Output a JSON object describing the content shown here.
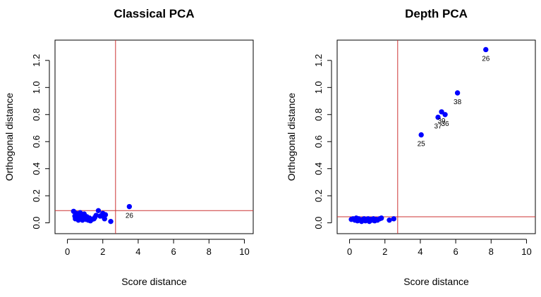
{
  "chart_data": [
    {
      "type": "scatter",
      "title": "Classical PCA",
      "xlabel": "Score distance",
      "ylabel": "Orthogonal distance",
      "xlim": [
        -0.7,
        10.5
      ],
      "ylim": [
        -0.08,
        1.35
      ],
      "xticks": [
        "0",
        "2",
        "4",
        "6",
        "8",
        "10"
      ],
      "yticks": [
        "0.0",
        "0.2",
        "0.4",
        "0.6",
        "0.8",
        "1.0",
        "1.2"
      ],
      "cutoff_x": 2.72,
      "cutoff_y": 0.09,
      "point_color": "#0000ff",
      "cutoff_color": "#cc3333",
      "points": [
        {
          "x": 0.35,
          "y": 0.085
        },
        {
          "x": 0.42,
          "y": 0.05
        },
        {
          "x": 0.45,
          "y": 0.03
        },
        {
          "x": 0.5,
          "y": 0.07
        },
        {
          "x": 0.55,
          "y": 0.04
        },
        {
          "x": 0.6,
          "y": 0.06
        },
        {
          "x": 0.62,
          "y": 0.02
        },
        {
          "x": 0.68,
          "y": 0.045
        },
        {
          "x": 0.72,
          "y": 0.075
        },
        {
          "x": 0.78,
          "y": 0.035
        },
        {
          "x": 0.82,
          "y": 0.055
        },
        {
          "x": 0.85,
          "y": 0.02
        },
        {
          "x": 0.9,
          "y": 0.05
        },
        {
          "x": 0.95,
          "y": 0.065
        },
        {
          "x": 1.0,
          "y": 0.035
        },
        {
          "x": 1.05,
          "y": 0.025
        },
        {
          "x": 1.1,
          "y": 0.045
        },
        {
          "x": 1.18,
          "y": 0.02
        },
        {
          "x": 1.25,
          "y": 0.035
        },
        {
          "x": 1.3,
          "y": 0.015
        },
        {
          "x": 1.4,
          "y": 0.025
        },
        {
          "x": 1.5,
          "y": 0.03
        },
        {
          "x": 1.55,
          "y": 0.04
        },
        {
          "x": 1.62,
          "y": 0.055
        },
        {
          "x": 1.75,
          "y": 0.09
        },
        {
          "x": 1.85,
          "y": 0.05
        },
        {
          "x": 2.0,
          "y": 0.07
        },
        {
          "x": 2.05,
          "y": 0.045
        },
        {
          "x": 2.1,
          "y": 0.03
        },
        {
          "x": 2.15,
          "y": 0.06
        },
        {
          "x": 2.45,
          "y": 0.01
        },
        {
          "x": 3.5,
          "y": 0.12,
          "label": "26"
        }
      ]
    },
    {
      "type": "scatter",
      "title": "Depth PCA",
      "xlabel": "Score distance",
      "ylabel": "Orthogonal distance",
      "xlim": [
        -0.7,
        10.5
      ],
      "ylim": [
        -0.08,
        1.35
      ],
      "xticks": [
        "0",
        "2",
        "4",
        "6",
        "8",
        "10"
      ],
      "yticks": [
        "0.0",
        "0.2",
        "0.4",
        "0.6",
        "0.8",
        "1.0",
        "1.2"
      ],
      "cutoff_x": 2.72,
      "cutoff_y": 0.045,
      "point_color": "#0000ff",
      "cutoff_color": "#cc3333",
      "points": [
        {
          "x": 0.1,
          "y": 0.025
        },
        {
          "x": 0.2,
          "y": 0.03
        },
        {
          "x": 0.3,
          "y": 0.02
        },
        {
          "x": 0.38,
          "y": 0.035
        },
        {
          "x": 0.45,
          "y": 0.015
        },
        {
          "x": 0.52,
          "y": 0.03
        },
        {
          "x": 0.6,
          "y": 0.02
        },
        {
          "x": 0.68,
          "y": 0.01
        },
        {
          "x": 0.75,
          "y": 0.025
        },
        {
          "x": 0.82,
          "y": 0.03
        },
        {
          "x": 0.9,
          "y": 0.015
        },
        {
          "x": 0.98,
          "y": 0.02
        },
        {
          "x": 1.05,
          "y": 0.03
        },
        {
          "x": 1.12,
          "y": 0.01
        },
        {
          "x": 1.2,
          "y": 0.025
        },
        {
          "x": 1.28,
          "y": 0.02
        },
        {
          "x": 1.35,
          "y": 0.03
        },
        {
          "x": 1.42,
          "y": 0.015
        },
        {
          "x": 1.5,
          "y": 0.025
        },
        {
          "x": 1.58,
          "y": 0.02
        },
        {
          "x": 1.7,
          "y": 0.03
        },
        {
          "x": 1.8,
          "y": 0.035
        },
        {
          "x": 2.25,
          "y": 0.02
        },
        {
          "x": 2.5,
          "y": 0.03
        },
        {
          "x": 4.05,
          "y": 0.65,
          "label": "25"
        },
        {
          "x": 5.0,
          "y": 0.78,
          "label": "37"
        },
        {
          "x": 5.2,
          "y": 0.82,
          "label": "39"
        },
        {
          "x": 5.4,
          "y": 0.8,
          "label": "36"
        },
        {
          "x": 6.1,
          "y": 0.96,
          "label": "38"
        },
        {
          "x": 7.7,
          "y": 1.28,
          "label": "26"
        }
      ]
    }
  ]
}
